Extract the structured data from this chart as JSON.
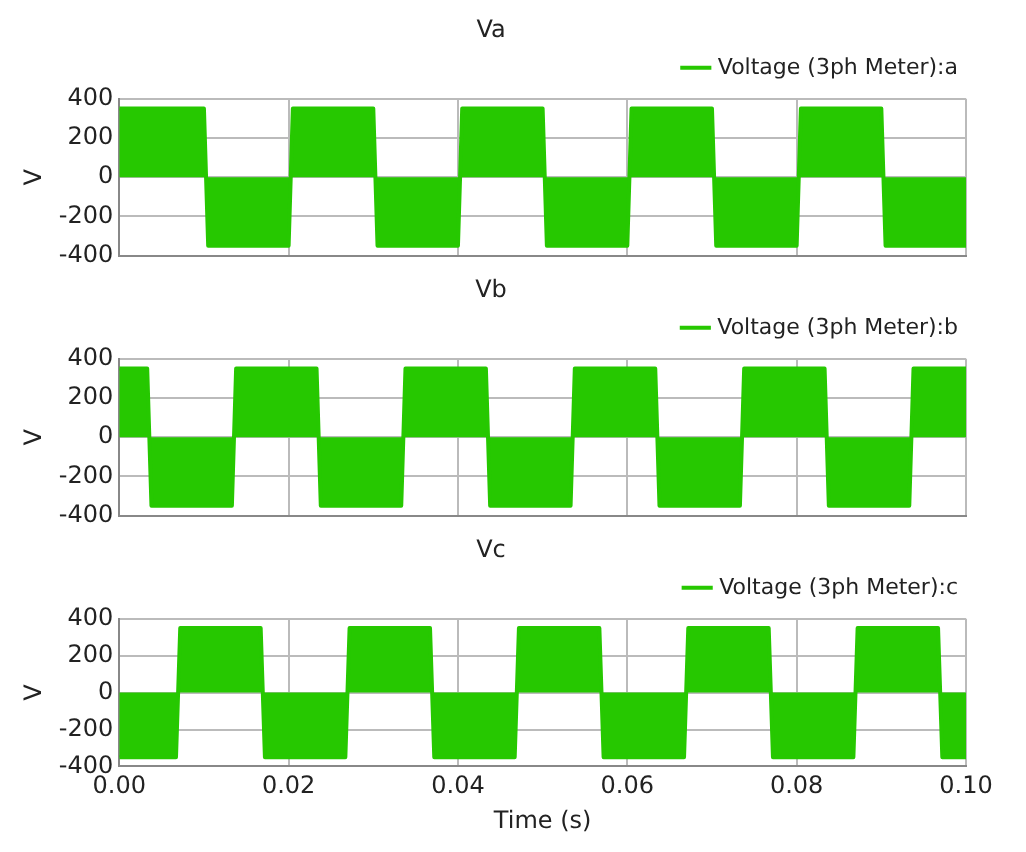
{
  "chart_data": [
    {
      "type": "area",
      "title": "Va",
      "ylabel": "V",
      "xlim": [
        0,
        0.1
      ],
      "xticks": [
        {
          "value": 0,
          "label": null
        },
        {
          "value": 0.02,
          "label": null
        },
        {
          "value": 0.04,
          "label": null
        },
        {
          "value": 0.06,
          "label": null
        },
        {
          "value": 0.08,
          "label": null
        },
        {
          "value": 0.1,
          "label": null
        }
      ],
      "ylim": [
        -400,
        400
      ],
      "yticks": [
        -400,
        -200,
        0,
        200,
        400
      ],
      "grid": true,
      "legend": "top right",
      "marker": "none",
      "tick_labels": "y",
      "series": [
        {
          "name": "Voltage (3ph Meter):a",
          "color": "#26c800",
          "x": [
            0,
            0.01,
            0.0105,
            0.02,
            0.0205,
            0.03,
            0.0305,
            0.04,
            0.0405,
            0.05,
            0.0505,
            0.06,
            0.0605,
            0.07,
            0.0705,
            0.08,
            0.0805,
            0.09,
            0.0905,
            0.1
          ],
          "values": [
            350,
            350,
            -350,
            -350,
            350,
            350,
            -350,
            -350,
            350,
            350,
            -350,
            -350,
            350,
            350,
            -350,
            -350,
            350,
            350,
            -350,
            -350
          ]
        }
      ]
    },
    {
      "type": "area",
      "title": "Vb",
      "ylabel": "V",
      "xlim": [
        0,
        0.1
      ],
      "xticks": [
        {
          "value": 0,
          "label": null
        },
        {
          "value": 0.02,
          "label": null
        },
        {
          "value": 0.04,
          "label": null
        },
        {
          "value": 0.06,
          "label": null
        },
        {
          "value": 0.08,
          "label": null
        },
        {
          "value": 0.1,
          "label": null
        }
      ],
      "ylim": [
        -400,
        400
      ],
      "yticks": [
        -400,
        -200,
        0,
        200,
        400
      ],
      "grid": true,
      "legend": "top right",
      "marker": "none",
      "tick_labels": "y",
      "series": [
        {
          "name": "Voltage (3ph Meter):b",
          "color": "#26c800",
          "x": [
            0,
            0.0033,
            0.0038,
            0.0133,
            0.0138,
            0.0233,
            0.0238,
            0.0333,
            0.0338,
            0.0433,
            0.0438,
            0.0533,
            0.0538,
            0.0633,
            0.0638,
            0.0733,
            0.0738,
            0.0833,
            0.0838,
            0.0933,
            0.0938,
            0.1
          ],
          "values": [
            350,
            350,
            -350,
            -350,
            350,
            350,
            -350,
            -350,
            350,
            350,
            -350,
            -350,
            350,
            350,
            -350,
            -350,
            350,
            350,
            -350,
            -350,
            350,
            350
          ]
        }
      ]
    },
    {
      "type": "area",
      "title": "Vc",
      "xlabel": "Time (s)",
      "ylabel": "V",
      "xlim": [
        0,
        0.1
      ],
      "xticks": [
        {
          "value": 0,
          "label": "0.00"
        },
        {
          "value": 0.02,
          "label": "0.02"
        },
        {
          "value": 0.04,
          "label": "0.04"
        },
        {
          "value": 0.06,
          "label": "0.06"
        },
        {
          "value": 0.08,
          "label": "0.08"
        },
        {
          "value": 0.1,
          "label": "0.10"
        }
      ],
      "ylim": [
        -400,
        400
      ],
      "yticks": [
        -400,
        -200,
        0,
        200,
        400
      ],
      "grid": true,
      "legend": "top right",
      "marker": "none",
      "series": [
        {
          "name": "Voltage (3ph Meter):c",
          "color": "#26c800",
          "x": [
            0,
            0.0067,
            0.0072,
            0.0167,
            0.0172,
            0.0267,
            0.0272,
            0.0367,
            0.0372,
            0.0467,
            0.0472,
            0.0567,
            0.0572,
            0.0667,
            0.0672,
            0.0767,
            0.0772,
            0.0867,
            0.0872,
            0.0967,
            0.0972,
            0.1
          ],
          "values": [
            -350,
            -350,
            350,
            350,
            -350,
            -350,
            350,
            350,
            -350,
            -350,
            350,
            350,
            -350,
            -350,
            350,
            350,
            -350,
            -350,
            350,
            350,
            -350,
            -350
          ]
        }
      ]
    }
  ]
}
